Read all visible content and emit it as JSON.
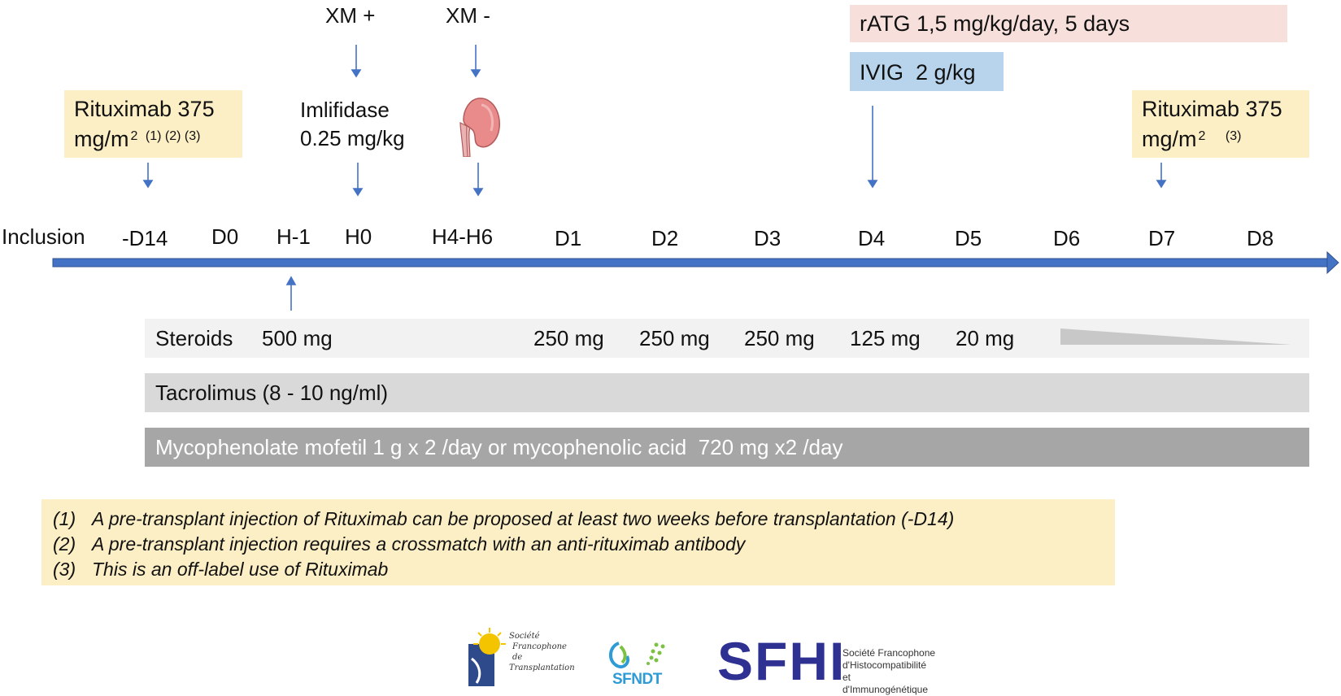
{
  "events": {
    "xm_plus": "XM +",
    "xm_minus": "XM -",
    "imlifidase_line1": "Imlifidase",
    "imlifidase_line2": "0.25 mg/kg",
    "kidney_icon": "kidney-icon"
  },
  "boxes": {
    "ratg": "rATG 1,5 mg/kg/day, 5 days",
    "ivig": "IVIG  2 g/kg",
    "rituximab_pre": {
      "line1": "Rituximab 375",
      "line2": "mg/m",
      "exp": "2",
      "refs": "(1) (2) (3)"
    },
    "rituximab_post": {
      "line1": "Rituximab 375",
      "line2": "mg/m",
      "exp": "2",
      "refs": "(3)"
    }
  },
  "timeline": {
    "labels": [
      "Inclusion",
      "-D14",
      "D0",
      "H-1",
      "H0",
      "H4-H6",
      "D1",
      "D2",
      "D3",
      "D4",
      "D5",
      "D6",
      "D7",
      "D8"
    ]
  },
  "treatments": {
    "steroids": {
      "label": "Steroids",
      "doses": [
        "500 mg",
        "250 mg",
        "250 mg",
        "250 mg",
        "125 mg",
        "20 mg"
      ]
    },
    "tacrolimus": "Tacrolimus (8 - 10 ng/ml)",
    "mycophenolate": "Mycophenolate mofetil 1 g x 2 /day or mycophenolic acid  720 mg x2 /day"
  },
  "notes": [
    {
      "num": "(1)",
      "text": "A pre-transplant injection of Rituximab can be proposed at least two weeks before transplantation (-D14)"
    },
    {
      "num": "(2)",
      "text": "A pre-transplant injection requires a crossmatch with an anti-rituximab antibody"
    },
    {
      "num": "(3)",
      "text": "This is an off-label use of Rituximab"
    }
  ],
  "logos": {
    "sft": {
      "line1": "Société",
      "line2": "Francophone de",
      "line3": "Transplantation"
    },
    "sfndt": "SFNDT",
    "sfhi": {
      "letters": "SFHI",
      "line1": "Société Francophone",
      "line2": "d'Histocompatibilité",
      "line3": "et d'Immunogénétique"
    }
  },
  "colors": {
    "arrow": "#4472c4",
    "timeline": "#4472c4",
    "yellow_box": "#fcefc5",
    "pink_box": "#f7e0dc",
    "blue_box": "#b8d3ec",
    "steroids_bar": "#f2f2f2",
    "tacrolimus_bar": "#d9d9d9",
    "mycophenolate_bar": "#a6a6a6",
    "sfhi_blue": "#2e3192"
  }
}
